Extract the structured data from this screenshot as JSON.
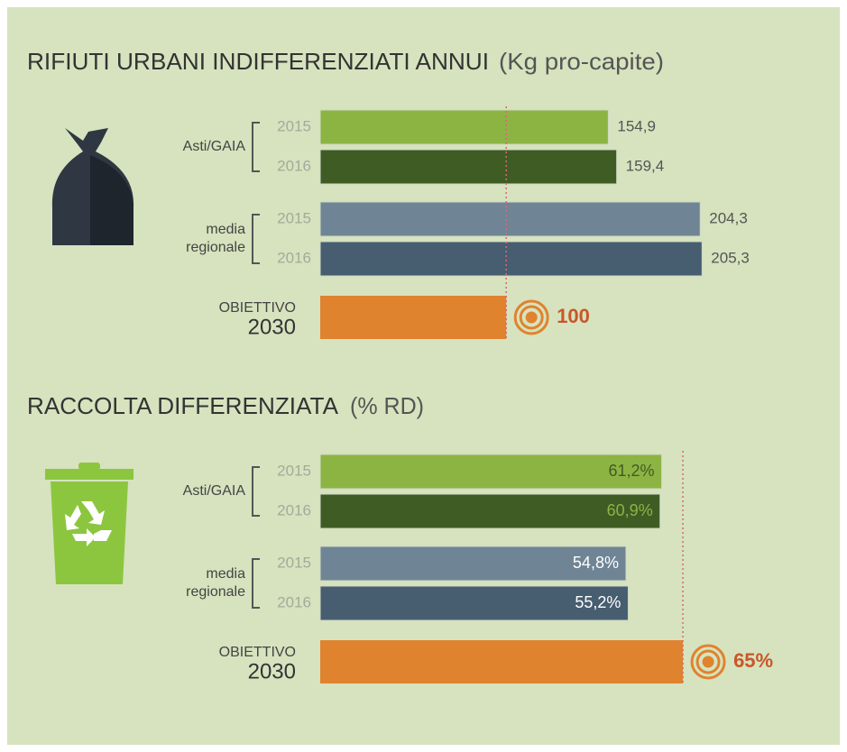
{
  "chart_data": [
    {
      "type": "bar",
      "title": "RIFIUTI URBANI INDIFFERENZIATI ANNUI",
      "subtitle": "(Kg pro-capite)",
      "groups": [
        [
          "Asti/GAIA"
        ],
        [
          "media",
          "regionale"
        ]
      ],
      "categories": [
        "2015",
        "2016",
        "2015",
        "2016"
      ],
      "values": [
        154.9,
        159.4,
        204.3,
        205.3
      ],
      "value_labels": [
        "154,9",
        "159,4",
        "204,3",
        "205,3"
      ],
      "colors": [
        "#8cb443",
        "#3f5c25",
        "#6f8595",
        "#475d70"
      ],
      "label_colors": [
        "#555555",
        "#555555",
        "#555555",
        "#555555"
      ],
      "value_label_position": "outside",
      "target": {
        "label": "OBIETTIVO",
        "year": "2030",
        "value": 100,
        "color": "#e0832f"
      },
      "xlim": [
        0,
        210
      ]
    },
    {
      "type": "bar",
      "title": "RACCOLTA DIFFERENZIATA",
      "subtitle": "(% RD)",
      "groups": [
        [
          "Asti/GAIA"
        ],
        [
          "media",
          "regionale"
        ]
      ],
      "categories": [
        "2015",
        "2016",
        "2015",
        "2016"
      ],
      "values": [
        61.2,
        60.9,
        54.8,
        55.2
      ],
      "value_labels": [
        "61,2%",
        "60,9%",
        "54,8%",
        "55,2%"
      ],
      "colors": [
        "#8cb443",
        "#3f5c25",
        "#6f8595",
        "#475d70"
      ],
      "label_colors": [
        "#3f5c25",
        "#8cb443",
        "#ffffff",
        "#ffffff"
      ],
      "value_label_position": "inside",
      "target": {
        "label": "OBIETTIVO",
        "year": "2030",
        "value": 65,
        "value_label": "65%",
        "color": "#e0832f"
      },
      "xlim": [
        0,
        70
      ]
    }
  ]
}
